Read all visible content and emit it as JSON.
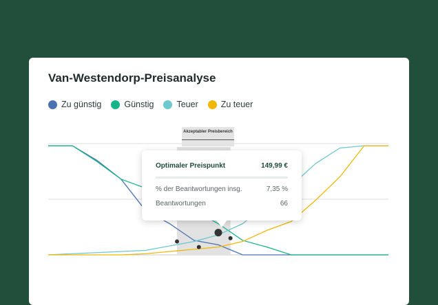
{
  "title": "Van-Westendorp-Preisanalyse",
  "legend": [
    {
      "label": "Zu günstig",
      "color": "#4a72b0"
    },
    {
      "label": "Günstig",
      "color": "#14b48a"
    },
    {
      "label": "Teuer",
      "color": "#6ec8cf"
    },
    {
      "label": "Zu teuer",
      "color": "#f2b705"
    }
  ],
  "band_label": "Akzeptabler Preisbereich",
  "tooltip": {
    "header_label": "Optimaler Preispunkt",
    "header_value": "149,99 €",
    "row1_label": "% der Beantwortungen insg.",
    "row1_value": "7,35 %",
    "row2_label": "Beantwortungen",
    "row2_value": "66"
  },
  "chart_data": {
    "type": "line",
    "title": "Van-Westendorp-Preisanalyse",
    "x": [
      0,
      1,
      2,
      3,
      4,
      5,
      6,
      7,
      8,
      9,
      10,
      11,
      12,
      13,
      14
    ],
    "ylim": [
      0,
      100
    ],
    "grid": true,
    "legend_position": "top-left",
    "acceptable_range_x": [
      5.3,
      7.5
    ],
    "series": [
      {
        "name": "Zu günstig",
        "color": "#4a72b0",
        "values": [
          98,
          98,
          85,
          68,
          40,
          28,
          13,
          9,
          0,
          0,
          0,
          0,
          0,
          0,
          0
        ]
      },
      {
        "name": "Günstig",
        "color": "#14b48a",
        "values": [
          98,
          98,
          84,
          68,
          60,
          50,
          40,
          28,
          13,
          7,
          0,
          0,
          0,
          0,
          0
        ]
      },
      {
        "name": "Teuer",
        "color": "#6ec8cf",
        "values": [
          0,
          1,
          2,
          3,
          4,
          8,
          12,
          18,
          28,
          45,
          62,
          82,
          96,
          98,
          98
        ]
      },
      {
        "name": "Zu teuer",
        "color": "#f2b705",
        "values": [
          0,
          0,
          0,
          0,
          1,
          3,
          5,
          7,
          12,
          22,
          30,
          49,
          70,
          98,
          98
        ]
      }
    ],
    "intersections": [
      {
        "x": 5.3,
        "y": 12
      },
      {
        "x": 6.2,
        "y": 7
      },
      {
        "x": 7.0,
        "y": 20
      },
      {
        "x": 7.5,
        "y": 15
      }
    ]
  }
}
